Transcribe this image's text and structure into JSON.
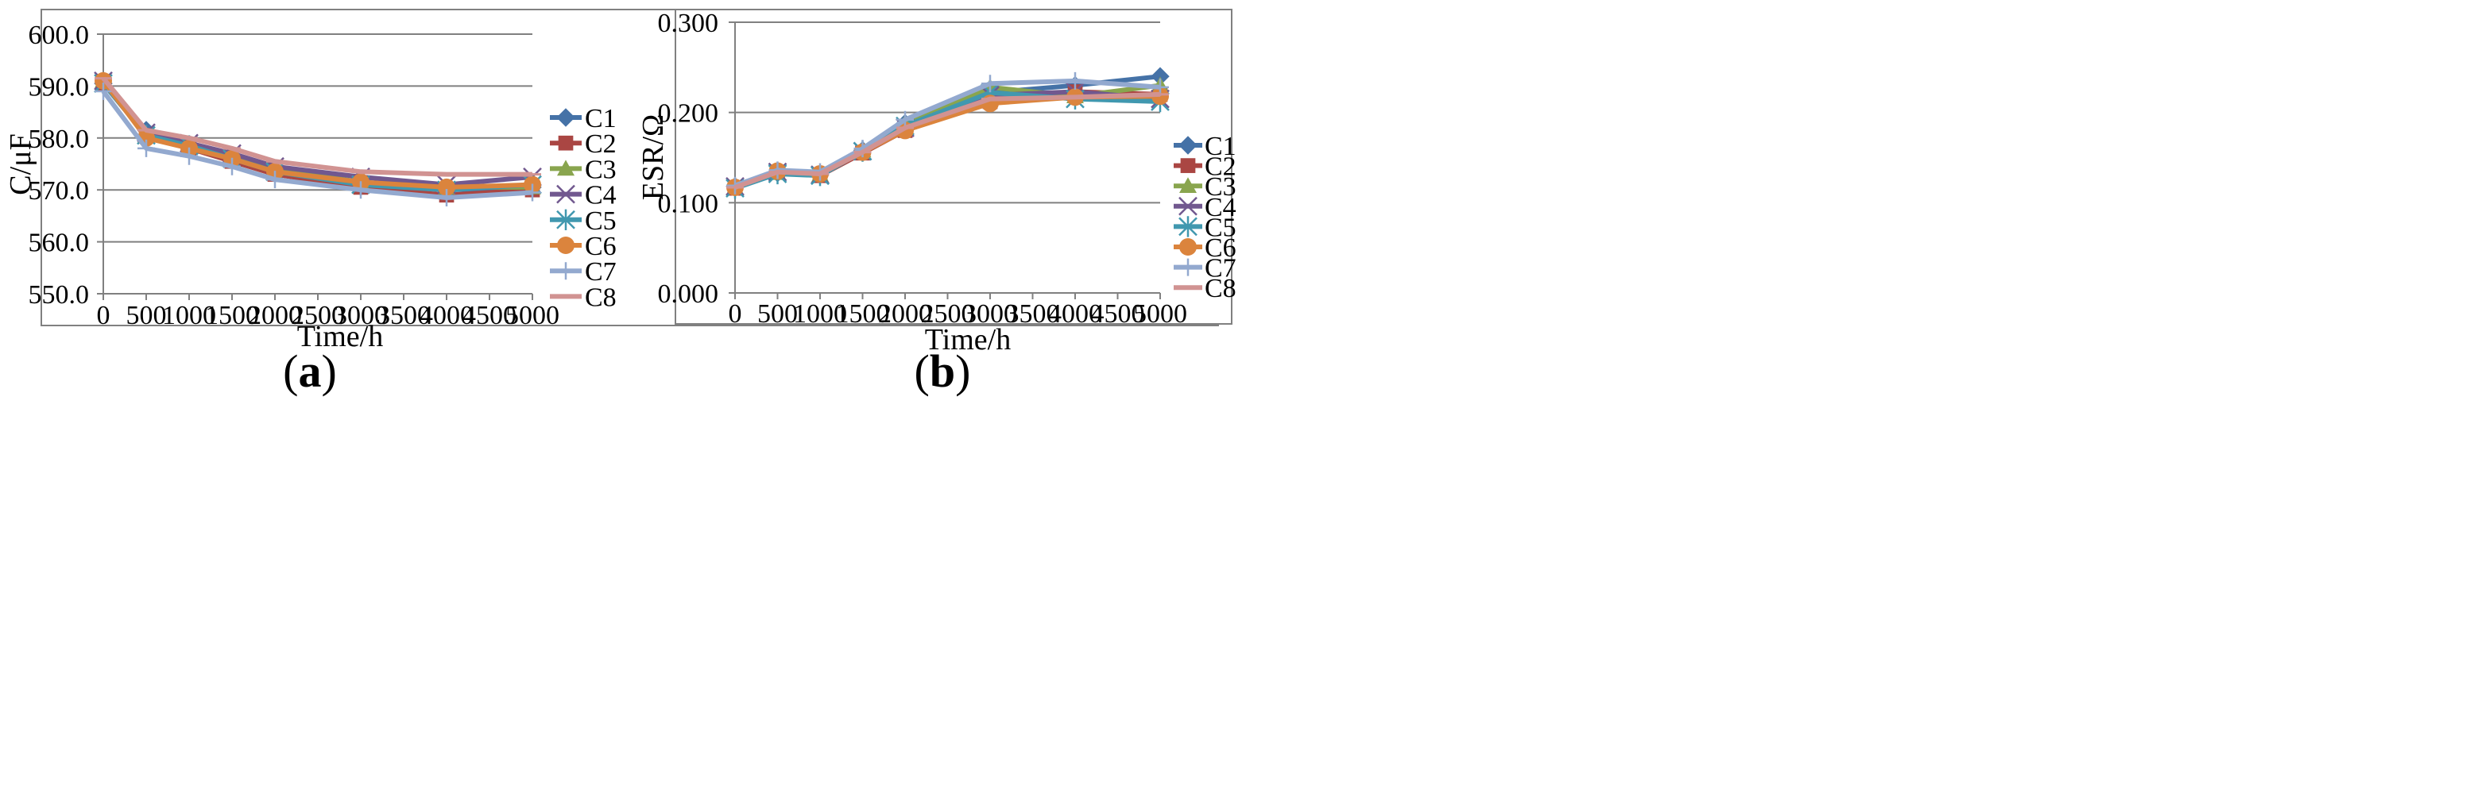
{
  "chart_data": [
    {
      "type": "line",
      "panel_label": "a",
      "xlabel": "Time/h",
      "ylabel": "C/μF",
      "x": [
        0,
        500,
        1000,
        1500,
        2000,
        3000,
        4000,
        5000
      ],
      "x_ticks": [
        "0",
        "500",
        "1000",
        "1500",
        "2000",
        "2500",
        "3000",
        "3500",
        "4000",
        "4500",
        "5000"
      ],
      "xlim": [
        0,
        5000
      ],
      "ylim": [
        550,
        600
      ],
      "y_ticks": [
        "550.0",
        "560.0",
        "570.0",
        "580.0",
        "590.0",
        "600.0"
      ],
      "grid": "horizontal",
      "legend_position": "right",
      "series": [
        {
          "name": "C1",
          "color": "#4572A7",
          "marker": "diamond",
          "values": [
            590.5,
            581.5,
            578.5,
            576.5,
            573.5,
            571.0,
            570.0,
            570.5
          ]
        },
        {
          "name": "C2",
          "color": "#AA4643",
          "marker": "square",
          "values": [
            590.5,
            580.5,
            578.0,
            575.5,
            573.0,
            570.5,
            569.0,
            570.0
          ]
        },
        {
          "name": "C3",
          "color": "#89A54E",
          "marker": "triangle",
          "values": [
            591.0,
            580.5,
            578.5,
            576.5,
            574.0,
            571.5,
            570.5,
            570.5
          ]
        },
        {
          "name": "C4",
          "color": "#71588F",
          "marker": "x",
          "values": [
            591.0,
            581.0,
            579.0,
            577.0,
            574.5,
            572.5,
            571.0,
            572.5
          ]
        },
        {
          "name": "C5",
          "color": "#4198AF",
          "marker": "star",
          "values": [
            590.5,
            580.5,
            578.5,
            576.0,
            573.5,
            571.0,
            570.0,
            571.0
          ]
        },
        {
          "name": "C6",
          "color": "#DB843D",
          "marker": "circle",
          "values": [
            591.0,
            580.0,
            578.0,
            576.0,
            573.5,
            571.5,
            570.5,
            571.0
          ]
        },
        {
          "name": "C7",
          "color": "#93A9CF",
          "marker": "plus",
          "values": [
            589.0,
            578.0,
            576.5,
            574.5,
            572.0,
            570.0,
            568.5,
            569.5
          ]
        },
        {
          "name": "C8",
          "color": "#D19392",
          "marker": "dash",
          "values": [
            591.5,
            581.5,
            580.0,
            578.0,
            575.5,
            573.5,
            573.0,
            573.0
          ]
        }
      ]
    },
    {
      "type": "line",
      "panel_label": "b",
      "xlabel": "Time/h",
      "ylabel": "ESR/Ω",
      "x": [
        0,
        500,
        1000,
        1500,
        2000,
        3000,
        4000,
        5000
      ],
      "x_ticks": [
        "0",
        "500",
        "1000",
        "1500",
        "2000",
        "2500",
        "3000",
        "3500",
        "4000",
        "4500",
        "5000"
      ],
      "xlim": [
        0,
        5000
      ],
      "ylim": [
        0,
        0.3
      ],
      "y_ticks": [
        "0.000",
        "0.100",
        "0.200",
        "0.300"
      ],
      "grid": "horizontal",
      "legend_position": "right",
      "series": [
        {
          "name": "C1",
          "color": "#4572A7",
          "marker": "diamond",
          "values": [
            0.118,
            0.133,
            0.131,
            0.158,
            0.188,
            0.222,
            0.23,
            0.24
          ]
        },
        {
          "name": "C2",
          "color": "#AA4643",
          "marker": "square",
          "values": [
            0.116,
            0.134,
            0.13,
            0.155,
            0.18,
            0.212,
            0.223,
            0.22
          ]
        },
        {
          "name": "C3",
          "color": "#89A54E",
          "marker": "triangle",
          "values": [
            0.117,
            0.133,
            0.131,
            0.158,
            0.188,
            0.228,
            0.218,
            0.23
          ]
        },
        {
          "name": "C4",
          "color": "#71588F",
          "marker": "x",
          "values": [
            0.118,
            0.134,
            0.131,
            0.157,
            0.183,
            0.219,
            0.223,
            0.215
          ]
        },
        {
          "name": "C5",
          "color": "#4198AF",
          "marker": "star",
          "values": [
            0.116,
            0.132,
            0.13,
            0.157,
            0.185,
            0.222,
            0.215,
            0.212
          ]
        },
        {
          "name": "C6",
          "color": "#DB843D",
          "marker": "circle",
          "values": [
            0.117,
            0.135,
            0.132,
            0.156,
            0.18,
            0.21,
            0.217,
            0.218
          ]
        },
        {
          "name": "C7",
          "color": "#93A9CF",
          "marker": "plus",
          "values": [
            0.119,
            0.136,
            0.134,
            0.16,
            0.192,
            0.232,
            0.235,
            0.228
          ]
        },
        {
          "name": "C8",
          "color": "#D19392",
          "marker": "dash",
          "values": [
            0.117,
            0.134,
            0.132,
            0.156,
            0.183,
            0.215,
            0.217,
            0.22
          ]
        }
      ]
    }
  ]
}
